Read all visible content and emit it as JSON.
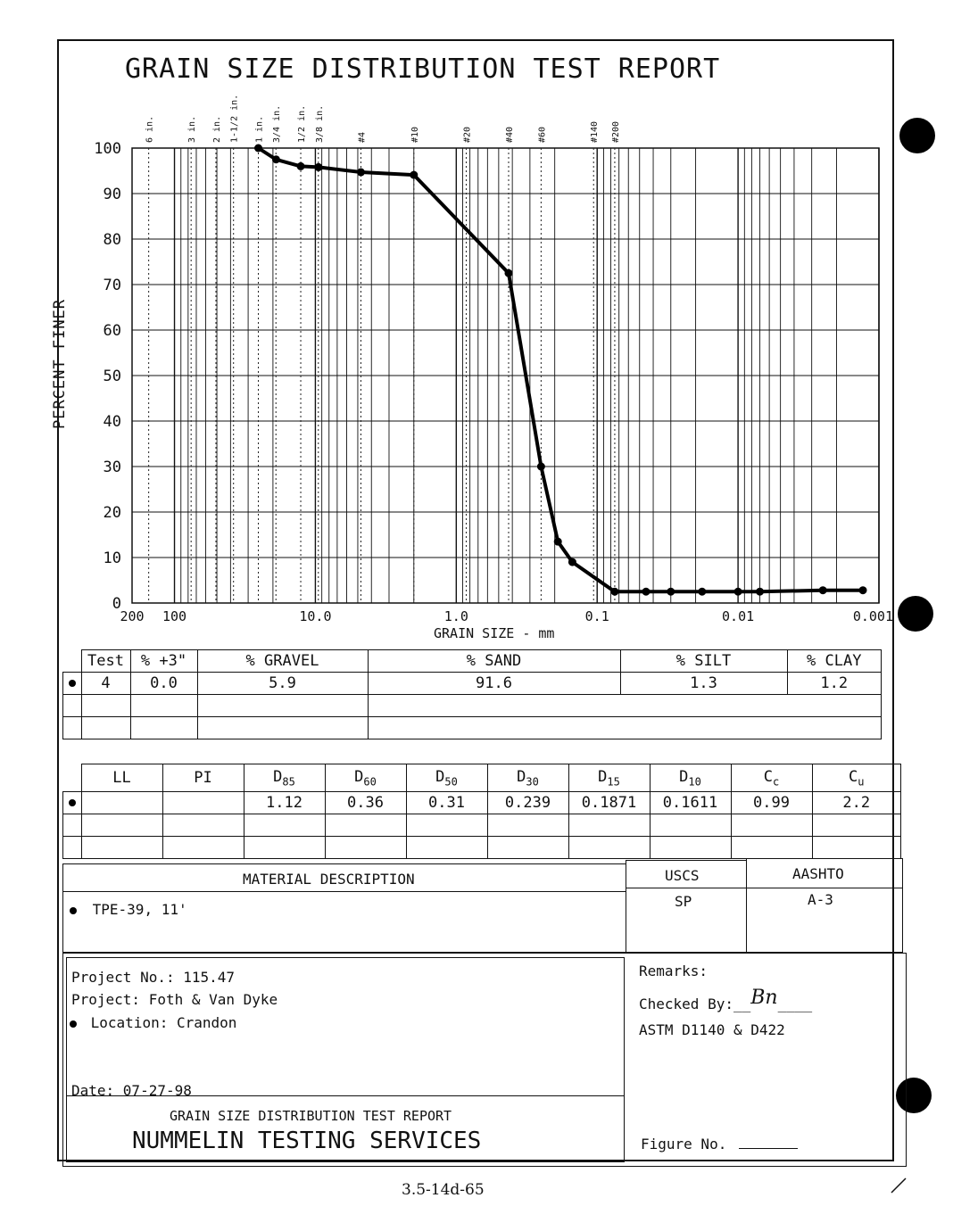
{
  "title": "GRAIN SIZE DISTRIBUTION TEST REPORT",
  "chart_data": {
    "type": "line",
    "title": "GRAIN SIZE DISTRIBUTION TEST REPORT",
    "xlabel": "GRAIN SIZE - mm",
    "ylabel": "PERCENT FINER",
    "x_scale": "log",
    "x_reversed": true,
    "xlim": [
      200,
      0.001
    ],
    "ylim": [
      0,
      100
    ],
    "x_tick_labels": [
      "200",
      "100",
      "10.0",
      "1.0",
      "0.1",
      "0.01",
      "0.001"
    ],
    "y_tick_labels": [
      "100",
      "90",
      "80",
      "70",
      "60",
      "50",
      "40",
      "30",
      "20",
      "10",
      "0"
    ],
    "sieve_labels": [
      "6 in.",
      "3 in.",
      "2 in.",
      "1-1/2 in.",
      "1 in.",
      "3/4 in.",
      "1/2 in.",
      "3/8 in.",
      "#4",
      "#10",
      "#20",
      "#40",
      "#60",
      "#140",
      "#200"
    ],
    "series": [
      {
        "x": [
          25.4,
          19.0,
          12.7,
          9.5,
          4.75,
          2.0,
          0.425,
          0.25,
          0.19,
          0.15,
          0.075,
          0.045,
          0.03,
          0.018,
          0.01,
          0.007,
          0.0025,
          0.0013
        ],
        "y": [
          100,
          97.5,
          96.0,
          95.8,
          94.7,
          94.1,
          72.5,
          30.0,
          13.5,
          9.0,
          2.5,
          2.5,
          2.5,
          2.5,
          2.5,
          2.5,
          2.8,
          2.8
        ]
      }
    ]
  },
  "gradation_table": {
    "headers": [
      "Test",
      "% +3\"",
      "% GRAVEL",
      "% SAND",
      "% SILT",
      "% CLAY"
    ],
    "row": [
      "4",
      "0.0",
      "5.9",
      "91.6",
      "1.3",
      "1.2"
    ]
  },
  "limits_table": {
    "headers": [
      "LL",
      "PI",
      "D85",
      "D60",
      "D50",
      "D30",
      "D15",
      "D10",
      "Cc",
      "Cu"
    ],
    "row": [
      "",
      "",
      "1.12",
      "0.36",
      "0.31",
      "0.239",
      "0.1871",
      "0.1611",
      "0.99",
      "2.2"
    ]
  },
  "material": {
    "header": "MATERIAL DESCRIPTION",
    "uscs_header": "USCS",
    "aashto_header": "AASHTO",
    "description": "TPE-39, 11'",
    "uscs": "SP",
    "aashto": "A-3"
  },
  "project": {
    "number": "Project No.: 115.47",
    "name": "Project: Foth & Van Dyke",
    "location": "Location: Crandon",
    "date": "Date: 07-27-98",
    "report_label": "GRAIN SIZE DISTRIBUTION TEST REPORT",
    "company": "NUMMELIN TESTING SERVICES"
  },
  "remarks": {
    "label": "Remarks:",
    "checked_by": "Checked By:",
    "initials": "Bn",
    "astm": "ASTM D1140 & D422",
    "figure": "Figure No."
  },
  "page_number": "3.5-14d-65"
}
